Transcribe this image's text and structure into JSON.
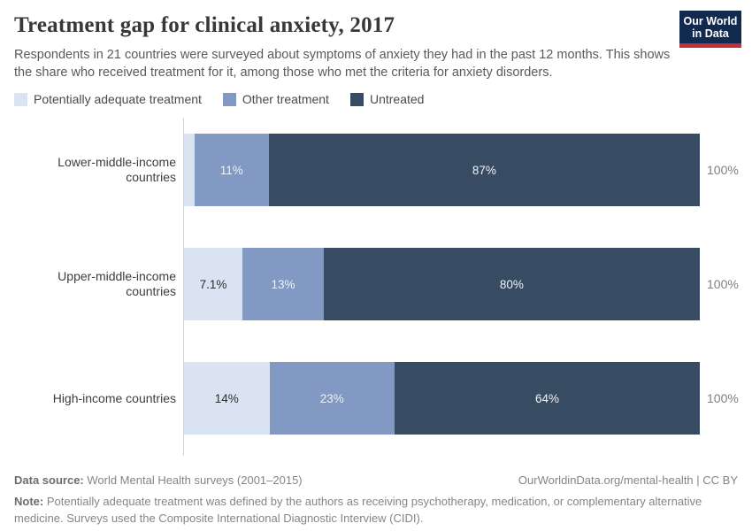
{
  "header": {
    "title": "Treatment gap for clinical anxiety, 2017",
    "subtitle": "Respondents in 21 countries were surveyed about symptoms of anxiety they had in the past 12 months. This shows the share who received treatment for it, among those who met the criteria for anxiety disorders.",
    "logo": {
      "line1": "Our World",
      "line2": "in Data"
    }
  },
  "legend": {
    "items": [
      {
        "label": "Potentially adequate treatment",
        "color": "#d9e3f2"
      },
      {
        "label": "Other treatment",
        "color": "#8199c3"
      },
      {
        "label": "Untreated",
        "color": "#374b63"
      }
    ]
  },
  "chart_data": {
    "type": "bar",
    "orientation": "horizontal",
    "stacked": true,
    "unit": "%",
    "xlim": [
      0,
      100
    ],
    "categories": [
      "Lower-middle-income countries",
      "Upper-middle-income countries",
      "High-income countries"
    ],
    "series": [
      {
        "name": "Potentially adequate treatment",
        "color": "#d9e3f2",
        "values": [
          2.2,
          7.1,
          14
        ]
      },
      {
        "name": "Other treatment",
        "color": "#8199c3",
        "values": [
          11,
          13,
          23
        ]
      },
      {
        "name": "Untreated",
        "color": "#374b63",
        "values": [
          87,
          80,
          64
        ]
      }
    ],
    "totals": [
      "100%",
      "100%",
      "100%"
    ],
    "title": "Treatment gap for clinical anxiety, 2017",
    "legend_position": "top",
    "grid": false
  },
  "rows": [
    {
      "label": "Lower-middle-income countries",
      "total": "100%",
      "segments": [
        {
          "value": 2.2,
          "label": ""
        },
        {
          "value": 11,
          "label": "11%"
        },
        {
          "value": 87,
          "label": "87%"
        }
      ]
    },
    {
      "label": "Upper-middle-income countries",
      "total": "100%",
      "segments": [
        {
          "value": 7.1,
          "label": "7.1%"
        },
        {
          "value": 13,
          "label": "13%"
        },
        {
          "value": 80,
          "label": "80%"
        }
      ]
    },
    {
      "label": "High-income countries",
      "total": "100%",
      "segments": [
        {
          "value": 14,
          "label": "14%"
        },
        {
          "value": 23,
          "label": "23%"
        },
        {
          "value": 64,
          "label": "64%"
        }
      ]
    }
  ],
  "footer": {
    "datasource_label": "Data source:",
    "datasource_text": " World Mental Health surveys (2001–2015)",
    "attribution": "OurWorldinData.org/mental-health | CC BY",
    "note_label": "Note:",
    "note_text": " Potentially adequate treatment was defined by the authors as receiving psychotherapy, medication, or complementary alternative medicine. Surveys used the Composite International Diagnostic Interview (CIDI)."
  }
}
